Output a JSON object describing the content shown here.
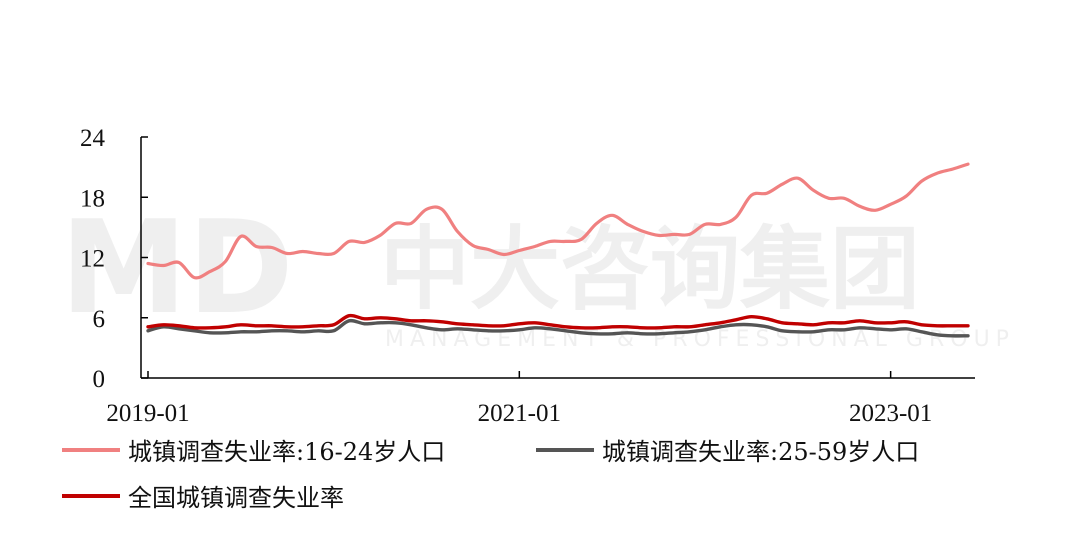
{
  "watermark": {
    "logo": "MD",
    "name": "中大咨询集团",
    "tagline": "MANAGEMENT & PROFESSIONAL GROUP"
  },
  "chart_data": {
    "type": "line",
    "ylim": [
      0,
      24
    ],
    "yticks": [
      0,
      6,
      12,
      18,
      24
    ],
    "x_tick_labels": [
      "2019-01",
      "2021-01",
      "2023-01"
    ],
    "x_ticks": [
      "2019-01",
      "2021-01",
      "2023-01"
    ],
    "x": [
      "2019-01",
      "2019-02",
      "2019-03",
      "2019-04",
      "2019-05",
      "2019-06",
      "2019-07",
      "2019-08",
      "2019-09",
      "2019-10",
      "2019-11",
      "2019-12",
      "2020-01",
      "2020-02",
      "2020-03",
      "2020-04",
      "2020-05",
      "2020-06",
      "2020-07",
      "2020-08",
      "2020-09",
      "2020-10",
      "2020-11",
      "2020-12",
      "2021-01",
      "2021-02",
      "2021-03",
      "2021-04",
      "2021-05",
      "2021-06",
      "2021-07",
      "2021-08",
      "2021-09",
      "2021-10",
      "2021-11",
      "2021-12",
      "2022-01",
      "2022-02",
      "2022-03",
      "2022-04",
      "2022-05",
      "2022-06",
      "2022-07",
      "2022-08",
      "2022-09",
      "2022-10",
      "2022-11",
      "2022-12",
      "2023-01",
      "2023-02",
      "2023-03",
      "2023-04",
      "2023-05",
      "2023-06"
    ],
    "series": [
      {
        "name": "城镇调查失业率:16-24岁人口",
        "color": "#f08080",
        "values": [
          11.4,
          11.2,
          11.5,
          10.0,
          10.6,
          11.6,
          14.1,
          13.1,
          13.0,
          12.4,
          12.6,
          12.4,
          12.4,
          13.6,
          13.5,
          14.2,
          15.4,
          15.4,
          16.8,
          16.8,
          14.6,
          13.2,
          12.8,
          12.3,
          12.7,
          13.1,
          13.6,
          13.6,
          13.8,
          15.4,
          16.2,
          15.3,
          14.6,
          14.2,
          14.3,
          14.3,
          15.3,
          15.3,
          16.0,
          18.2,
          18.4,
          19.3,
          19.9,
          18.7,
          17.9,
          17.9,
          17.1,
          16.7,
          17.3,
          18.1,
          19.6,
          20.4,
          20.8,
          21.3
        ]
      },
      {
        "name": "城镇调查失业率:25-59岁人口",
        "color": "#555555",
        "values": [
          4.7,
          5.1,
          4.9,
          4.7,
          4.5,
          4.5,
          4.6,
          4.6,
          4.7,
          4.7,
          4.6,
          4.7,
          4.7,
          5.7,
          5.4,
          5.5,
          5.5,
          5.3,
          5.0,
          4.8,
          4.9,
          4.8,
          4.7,
          4.7,
          4.8,
          5.0,
          4.9,
          4.7,
          4.5,
          4.4,
          4.4,
          4.5,
          4.4,
          4.4,
          4.5,
          4.6,
          4.8,
          5.1,
          5.3,
          5.3,
          5.1,
          4.7,
          4.6,
          4.6,
          4.8,
          4.8,
          5.0,
          4.9,
          4.8,
          4.9,
          4.6,
          4.3,
          4.2,
          4.2
        ]
      },
      {
        "name": "全国城镇调查失业率",
        "color": "#c00000",
        "values": [
          5.1,
          5.3,
          5.2,
          5.0,
          5.0,
          5.1,
          5.3,
          5.2,
          5.2,
          5.1,
          5.1,
          5.2,
          5.3,
          6.2,
          5.9,
          6.0,
          5.9,
          5.7,
          5.7,
          5.6,
          5.4,
          5.3,
          5.2,
          5.2,
          5.4,
          5.5,
          5.3,
          5.1,
          5.0,
          5.0,
          5.1,
          5.1,
          5.0,
          5.0,
          5.1,
          5.1,
          5.3,
          5.5,
          5.8,
          6.1,
          5.9,
          5.5,
          5.4,
          5.3,
          5.5,
          5.5,
          5.7,
          5.5,
          5.5,
          5.6,
          5.3,
          5.2,
          5.2,
          5.2
        ]
      }
    ]
  }
}
